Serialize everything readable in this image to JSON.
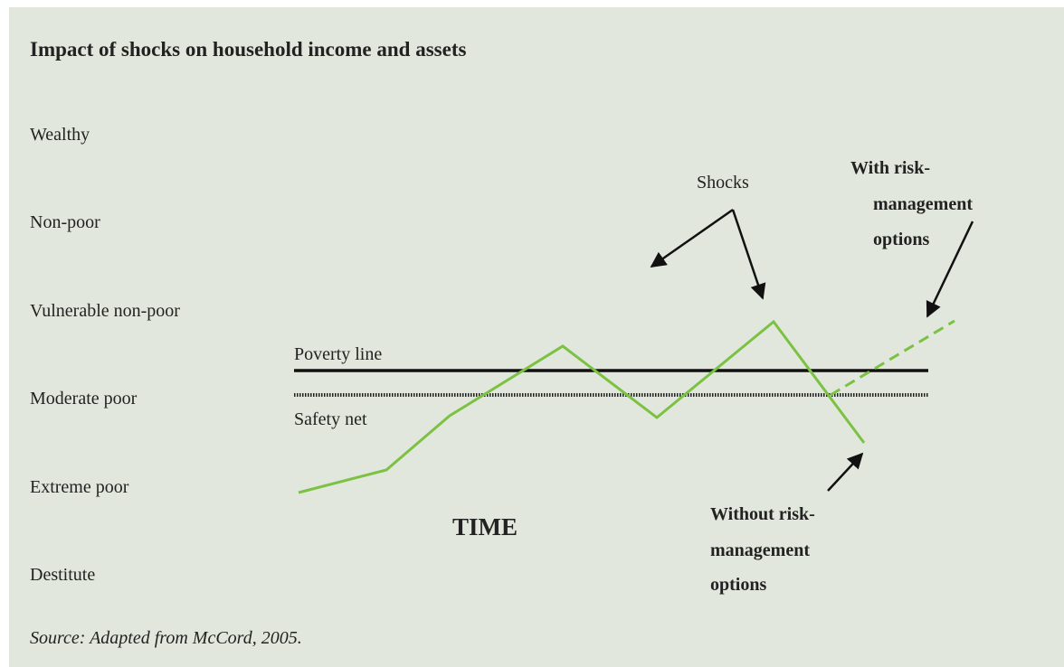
{
  "title": "Impact of shocks on household income and assets",
  "levels": [
    "Wealthy",
    "Non-poor",
    "Vulnerable non-poor",
    "Moderate poor",
    "Extreme poor",
    "Destitute"
  ],
  "lines": {
    "poverty_line": "Poverty line",
    "safety_net": "Safety net"
  },
  "axis_label": "TIME",
  "annotations": {
    "shocks": "Shocks",
    "with": [
      "With risk-",
      "management",
      "options"
    ],
    "without": [
      "Without risk-",
      "management",
      "options"
    ]
  },
  "source": "Source: Adapted from McCord, 2005."
}
